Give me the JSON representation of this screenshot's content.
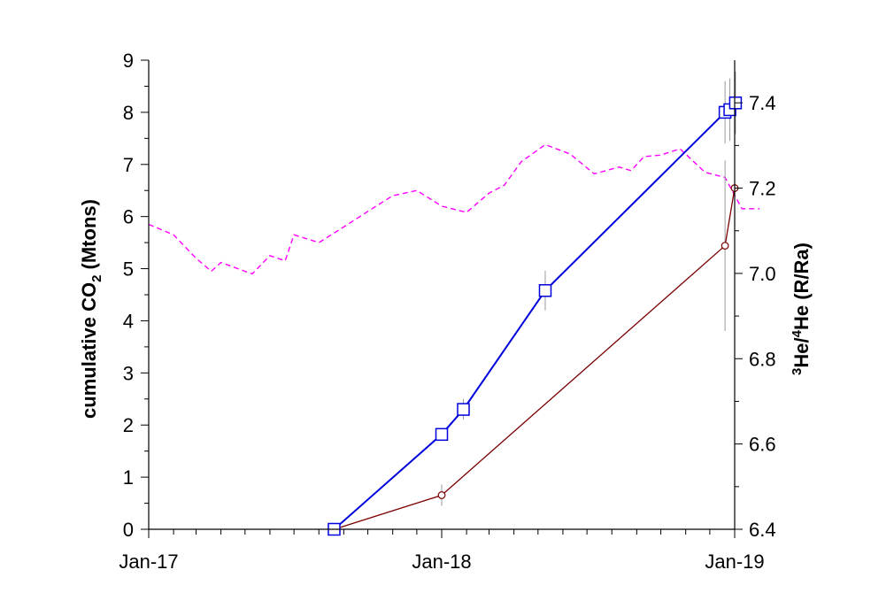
{
  "chart_data": {
    "type": "line",
    "xlabel": "",
    "xlim": [
      "2017-01",
      "2019-01"
    ],
    "x_ticks": [
      "Jan-17",
      "Jan-18",
      "Jan-19"
    ],
    "ylabel_left": {
      "pre": "cumulative CO",
      "sub": "2",
      "post": " (Mtons)"
    },
    "ylim_left": [
      0,
      9
    ],
    "y_ticks_left": [
      "0",
      "1",
      "2",
      "3",
      "4",
      "5",
      "6",
      "7",
      "8",
      "9"
    ],
    "ylabel_right": {
      "sup1": "3",
      "mid": "He/",
      "sup2": "4",
      "post": "He (R/Ra)"
    },
    "ylim_right": [
      6.4,
      7.5
    ],
    "y_ticks_right": [
      "6.4",
      "6.6",
      "6.8",
      "7.0",
      "7.2",
      "7.4"
    ],
    "grid": false,
    "series": [
      {
        "axis": "left",
        "marker": "square",
        "color": "#0000dd",
        "error_color": "#999999",
        "points": [
          {
            "x": "2017-08-20",
            "y": 0.0,
            "err": 0.0
          },
          {
            "x": "2018-01-01",
            "y": 1.82,
            "err": 0.12
          },
          {
            "x": "2018-01-28",
            "y": 2.3,
            "err": 0.2
          },
          {
            "x": "2018-05-10",
            "y": 4.58,
            "err": 0.38
          },
          {
            "x": "2018-12-20",
            "y": 8.0,
            "err": 0.6
          },
          {
            "x": "2018-12-26",
            "y": 8.05,
            "err": 0.6
          },
          {
            "x": "2019-01-02",
            "y": 8.18,
            "err": 0.6
          }
        ]
      },
      {
        "axis": "right",
        "marker": "circle",
        "color": "#7a0000",
        "error_color": "#999999",
        "points": [
          {
            "x": "2017-08-20",
            "y": 6.4,
            "err": 0.0
          },
          {
            "x": "2018-01-01",
            "y": 6.48,
            "err": 0.025
          },
          {
            "x": "2018-12-20",
            "y": 7.065,
            "err": 0.2
          },
          {
            "x": "2019-01-01",
            "y": 7.2,
            "err": 0.24
          }
        ]
      },
      {
        "axis": "left",
        "style": "dashed",
        "color": "#ff00ff",
        "points": [
          {
            "x": "2017-01-01",
            "y": 5.85
          },
          {
            "x": "2017-02-01",
            "y": 5.65
          },
          {
            "x": "2017-03-01",
            "y": 5.2
          },
          {
            "x": "2017-03-20",
            "y": 4.95
          },
          {
            "x": "2017-04-01",
            "y": 5.12
          },
          {
            "x": "2017-05-01",
            "y": 4.95
          },
          {
            "x": "2017-05-10",
            "y": 4.9
          },
          {
            "x": "2017-06-01",
            "y": 5.25
          },
          {
            "x": "2017-06-20",
            "y": 5.15
          },
          {
            "x": "2017-07-01",
            "y": 5.65
          },
          {
            "x": "2017-08-01",
            "y": 5.5
          },
          {
            "x": "2017-09-01",
            "y": 5.8
          },
          {
            "x": "2017-10-01",
            "y": 6.1
          },
          {
            "x": "2017-11-01",
            "y": 6.4
          },
          {
            "x": "2017-12-01",
            "y": 6.5
          },
          {
            "x": "2018-01-01",
            "y": 6.2
          },
          {
            "x": "2018-02-01",
            "y": 6.08
          },
          {
            "x": "2018-03-01",
            "y": 6.45
          },
          {
            "x": "2018-03-20",
            "y": 6.6
          },
          {
            "x": "2018-04-10",
            "y": 7.05
          },
          {
            "x": "2018-05-10",
            "y": 7.38
          },
          {
            "x": "2018-06-10",
            "y": 7.2
          },
          {
            "x": "2018-07-10",
            "y": 6.82
          },
          {
            "x": "2018-08-10",
            "y": 6.95
          },
          {
            "x": "2018-08-25",
            "y": 6.88
          },
          {
            "x": "2018-09-10",
            "y": 7.15
          },
          {
            "x": "2018-10-01",
            "y": 7.18
          },
          {
            "x": "2018-10-25",
            "y": 7.3
          },
          {
            "x": "2018-11-25",
            "y": 6.85
          },
          {
            "x": "2018-12-20",
            "y": 6.75
          },
          {
            "x": "2019-01-10",
            "y": 6.15
          },
          {
            "x": "2019-02-01",
            "y": 6.15
          }
        ]
      }
    ]
  }
}
